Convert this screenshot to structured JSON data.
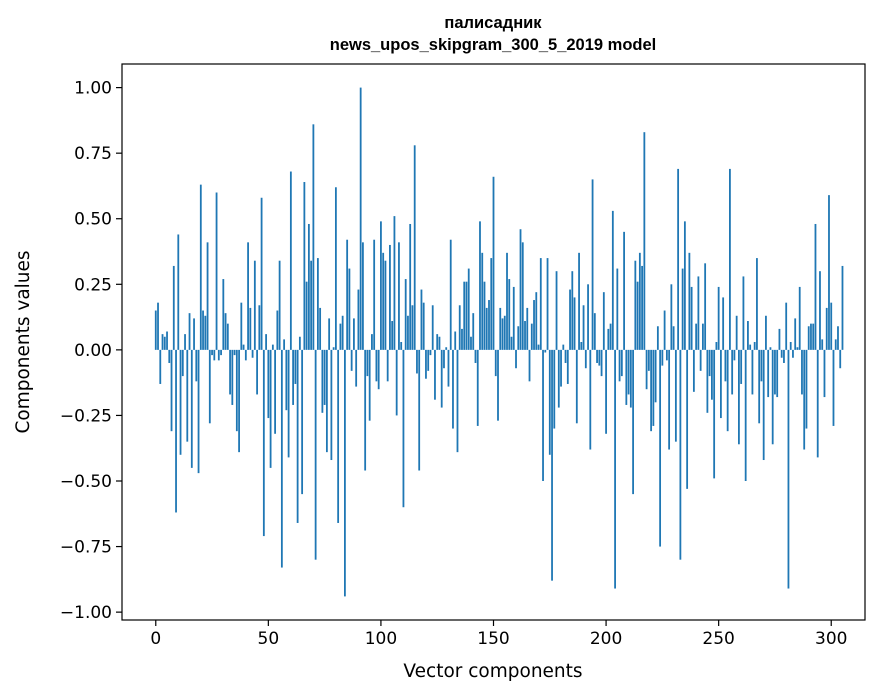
{
  "chart_data": {
    "type": "bar",
    "title_line1": "палисадник",
    "title_line2": "news_upos_skipgram_300_5_2019 model",
    "xlabel": "Vector components",
    "ylabel": "Components values",
    "xlim": [
      -15,
      315
    ],
    "ylim": [
      -1.03,
      1.09
    ],
    "xticks": [
      0,
      50,
      100,
      150,
      200,
      250,
      300
    ],
    "yticks": [
      1.0,
      0.75,
      0.5,
      0.25,
      0.0,
      -0.25,
      -0.5,
      -0.75,
      -1.0
    ],
    "ytick_labels": [
      "1.00",
      "0.75",
      "0.50",
      "0.25",
      "0.00",
      "−0.25",
      "−0.50",
      "−0.75",
      "−1.00"
    ],
    "bar_color": "#1f77b4",
    "grid": false,
    "legend": "none",
    "values": [
      0.15,
      0.18,
      -0.13,
      0.06,
      0.05,
      0.07,
      -0.05,
      -0.31,
      0.32,
      -0.62,
      0.44,
      -0.4,
      -0.1,
      0.06,
      -0.35,
      0.14,
      -0.45,
      0.12,
      -0.12,
      -0.47,
      0.63,
      0.15,
      0.13,
      0.41,
      -0.28,
      -0.02,
      -0.04,
      0.6,
      -0.04,
      -0.02,
      0.27,
      0.14,
      0.1,
      -0.17,
      -0.21,
      -0.02,
      -0.31,
      -0.39,
      0.18,
      0.02,
      -0.04,
      0.41,
      0.16,
      -0.03,
      0.34,
      -0.17,
      0.17,
      0.58,
      -0.71,
      0.06,
      -0.26,
      -0.45,
      0.02,
      -0.32,
      0.15,
      0.34,
      -0.83,
      0.04,
      -0.23,
      -0.41,
      0.68,
      -0.21,
      -0.13,
      -0.66,
      0.05,
      -0.55,
      0.64,
      0.26,
      0.48,
      0.34,
      0.86,
      -0.8,
      0.35,
      0.16,
      -0.24,
      -0.21,
      -0.39,
      0.12,
      -0.42,
      0.01,
      0.62,
      -0.66,
      0.1,
      0.13,
      -0.94,
      0.42,
      0.31,
      -0.08,
      0.12,
      -0.14,
      0.23,
      1.0,
      0.41,
      -0.46,
      -0.1,
      -0.27,
      0.06,
      0.42,
      -0.12,
      -0.15,
      0.49,
      0.37,
      0.34,
      -0.12,
      0.4,
      0.11,
      0.51,
      -0.25,
      0.41,
      0.03,
      -0.6,
      0.27,
      0.13,
      0.48,
      0.17,
      0.78,
      -0.09,
      -0.46,
      0.23,
      0.18,
      -0.11,
      -0.08,
      -0.02,
      0.17,
      -0.19,
      0.06,
      0.05,
      -0.22,
      -0.07,
      0.01,
      -0.14,
      0.42,
      -0.3,
      0.07,
      -0.39,
      0.17,
      0.08,
      0.26,
      0.26,
      0.31,
      0.05,
      0.14,
      -0.05,
      -0.29,
      0.49,
      0.37,
      0.26,
      0.16,
      0.19,
      0.35,
      0.66,
      -0.1,
      -0.27,
      0.16,
      0.12,
      0.13,
      0.37,
      0.27,
      0.05,
      0.24,
      -0.07,
      0.09,
      0.46,
      0.41,
      0.11,
      0.16,
      -0.12,
      0.1,
      0.19,
      0.22,
      0.02,
      0.35,
      -0.5,
      -0.01,
      0.35,
      -0.4,
      -0.88,
      -0.3,
      0.3,
      -0.22,
      -0.14,
      0.02,
      -0.05,
      -0.13,
      0.23,
      0.3,
      0.2,
      -0.28,
      0.37,
      0.03,
      0.17,
      -0.07,
      0.25,
      -0.38,
      0.65,
      0.14,
      -0.05,
      -0.06,
      -0.1,
      0.22,
      -0.32,
      0.08,
      0.1,
      0.53,
      -0.91,
      0.31,
      -0.12,
      -0.1,
      0.45,
      -0.21,
      -0.17,
      -0.22,
      -0.55,
      0.34,
      0.26,
      0.37,
      0.32,
      0.83,
      -0.15,
      -0.08,
      -0.31,
      -0.29,
      -0.2,
      0.09,
      -0.75,
      -0.06,
      0.15,
      -0.04,
      -0.38,
      0.25,
      0.09,
      -0.35,
      0.69,
      -0.8,
      0.31,
      0.49,
      -0.53,
      0.37,
      0.24,
      -0.16,
      0.1,
      0.28,
      -0.08,
      0.1,
      0.33,
      -0.24,
      -0.1,
      -0.19,
      -0.49,
      0.03,
      0.24,
      -0.26,
      0.2,
      -0.12,
      -0.31,
      0.69,
      -0.17,
      -0.04,
      0.13,
      -0.36,
      -0.13,
      0.28,
      -0.5,
      0.11,
      0.02,
      -0.17,
      0.03,
      0.35,
      -0.28,
      -0.12,
      -0.42,
      0.13,
      -0.18,
      0.01,
      -0.36,
      -0.17,
      -0.18,
      0.08,
      -0.03,
      -0.05,
      0.18,
      -0.91,
      0.03,
      -0.03,
      0.12,
      0.01,
      0.24,
      -0.17,
      -0.38,
      -0.3,
      0.09,
      0.1,
      0.1,
      0.48,
      -0.41,
      0.3,
      0.04,
      -0.18,
      0.16,
      0.59,
      0.18,
      -0.29,
      0.04,
      0.09,
      -0.07,
      0.32
    ]
  }
}
